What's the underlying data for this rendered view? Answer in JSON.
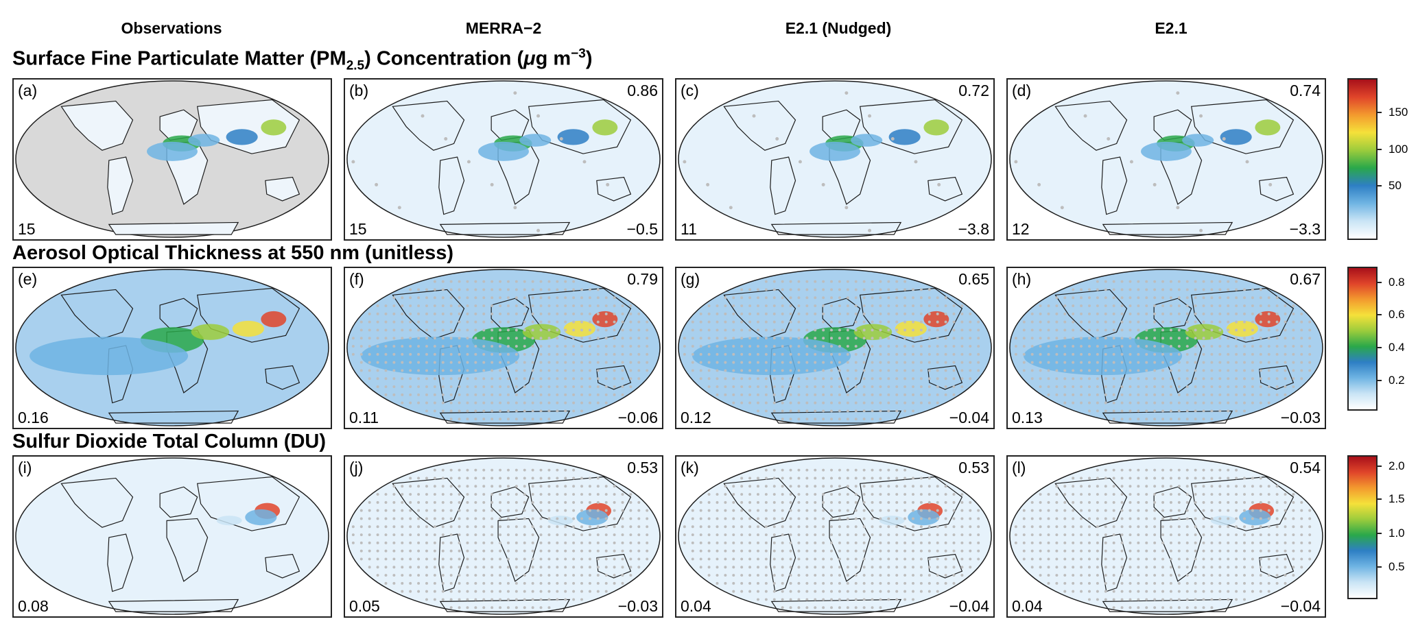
{
  "columns": [
    "Observations",
    "MERRA−2",
    "E2.1 (Nudged)",
    "E2.1"
  ],
  "rows": [
    {
      "title_main": "Surface Fine Particulate Matter (PM",
      "title_sub": "2.5",
      "title_mid": ") Concentration (",
      "title_mu": "μ",
      "title_unit": "g m",
      "title_sup": "−3",
      "title_end": ")",
      "colorbar_ticks": [
        "150",
        "100",
        "50"
      ],
      "panels": [
        {
          "letter": "(a)",
          "corr": "",
          "mean": "15",
          "bias": ""
        },
        {
          "letter": "(b)",
          "corr": "0.86",
          "mean": "15",
          "bias": "−0.5"
        },
        {
          "letter": "(c)",
          "corr": "0.72",
          "mean": "11",
          "bias": "−3.8"
        },
        {
          "letter": "(d)",
          "corr": "0.74",
          "mean": "12",
          "bias": "−3.3"
        }
      ]
    },
    {
      "title": "Aerosol Optical Thickness at 550 nm (unitless)",
      "colorbar_ticks": [
        "0.8",
        "0.6",
        "0.4",
        "0.2"
      ],
      "panels": [
        {
          "letter": "(e)",
          "corr": "",
          "mean": "0.16",
          "bias": ""
        },
        {
          "letter": "(f)",
          "corr": "0.79",
          "mean": "0.11",
          "bias": "−0.06"
        },
        {
          "letter": "(g)",
          "corr": "0.65",
          "mean": "0.12",
          "bias": "−0.04"
        },
        {
          "letter": "(h)",
          "corr": "0.67",
          "mean": "0.13",
          "bias": "−0.03"
        }
      ]
    },
    {
      "title": "Sulfur Dioxide Total Column (DU)",
      "colorbar_ticks": [
        "2.0",
        "1.5",
        "1.0",
        "0.5"
      ],
      "panels": [
        {
          "letter": "(i)",
          "corr": "",
          "mean": "0.08",
          "bias": ""
        },
        {
          "letter": "(j)",
          "corr": "0.53",
          "mean": "0.05",
          "bias": "−0.03"
        },
        {
          "letter": "(k)",
          "corr": "0.53",
          "mean": "0.04",
          "bias": "−0.04"
        },
        {
          "letter": "(l)",
          "corr": "0.54",
          "mean": "0.04",
          "bias": "−0.04"
        }
      ]
    }
  ],
  "colorbar_colors": [
    "#ffffff",
    "#c9e4f5",
    "#6fb4e3",
    "#2e7fc4",
    "#2aa84a",
    "#9ccc3c",
    "#f5e13a",
    "#f39a2e",
    "#e0452a",
    "#a8101a"
  ],
  "colors": {
    "ocean_low": "#e6f2fb",
    "land_obs_missing": "#d9d9d9",
    "dot": "#bdbdbd",
    "coast": "#1a1a1a"
  }
}
